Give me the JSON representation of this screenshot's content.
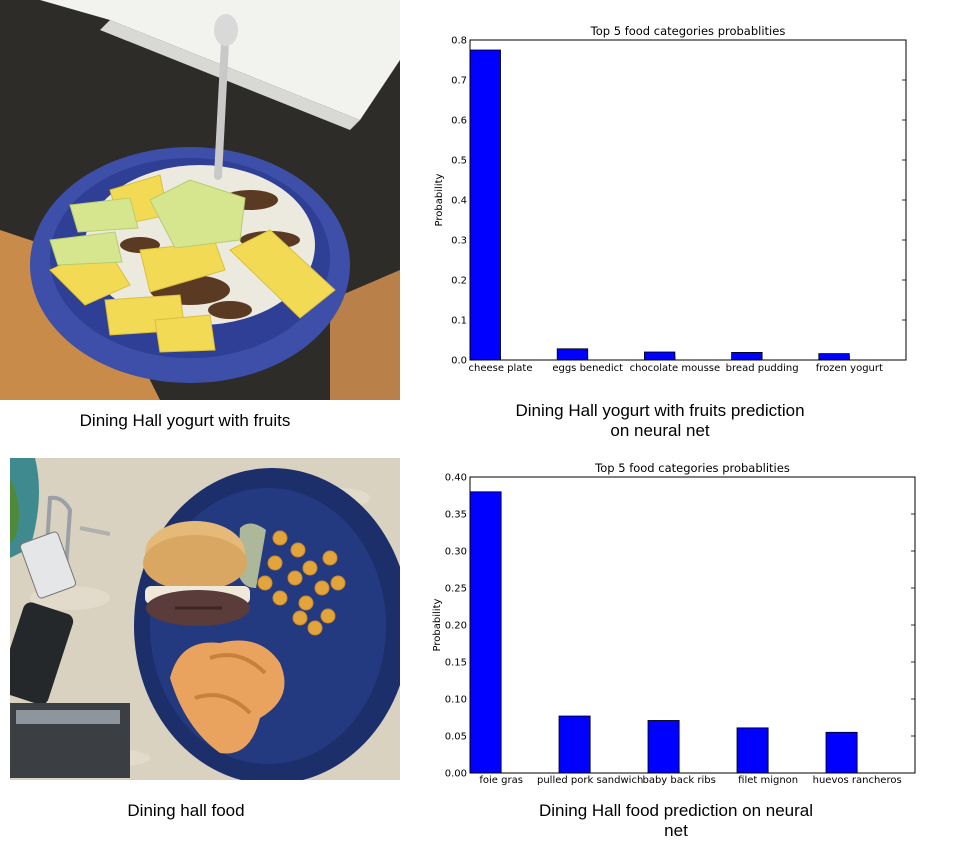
{
  "captions": {
    "photo1": "Dining Hall yogurt with fruits",
    "chart1": "Dining Hall yogurt with fruits prediction on neural net",
    "photo2": "Dining hall food",
    "chart2": "Dining Hall food prediction on neural net"
  },
  "chart_data": [
    {
      "type": "bar",
      "title": "Top 5 food categories probablities",
      "xlabel": "",
      "ylabel": "Probability",
      "categories": [
        "cheese plate",
        "eggs benedict",
        "chocolate mousse",
        "bread pudding",
        "frozen yogurt"
      ],
      "values": [
        0.775,
        0.028,
        0.02,
        0.019,
        0.016
      ],
      "ylim": [
        0,
        0.8
      ],
      "yticks": [
        "0.0",
        "0.1",
        "0.2",
        "0.3",
        "0.4",
        "0.5",
        "0.6",
        "0.7",
        "0.8"
      ],
      "color": "#0000ff",
      "grid": false
    },
    {
      "type": "bar",
      "title": "Top 5 food categories probablities",
      "xlabel": "",
      "ylabel": "Probability",
      "categories": [
        "foie gras",
        "pulled pork sandwich",
        "baby back ribs",
        "filet mignon",
        "huevos rancheros"
      ],
      "values": [
        0.38,
        0.077,
        0.071,
        0.061,
        0.055
      ],
      "ylim": [
        0,
        0.4
      ],
      "yticks": [
        "0.00",
        "0.05",
        "0.10",
        "0.15",
        "0.20",
        "0.25",
        "0.30",
        "0.35",
        "0.40"
      ],
      "color": "#0000ff",
      "grid": false
    }
  ]
}
